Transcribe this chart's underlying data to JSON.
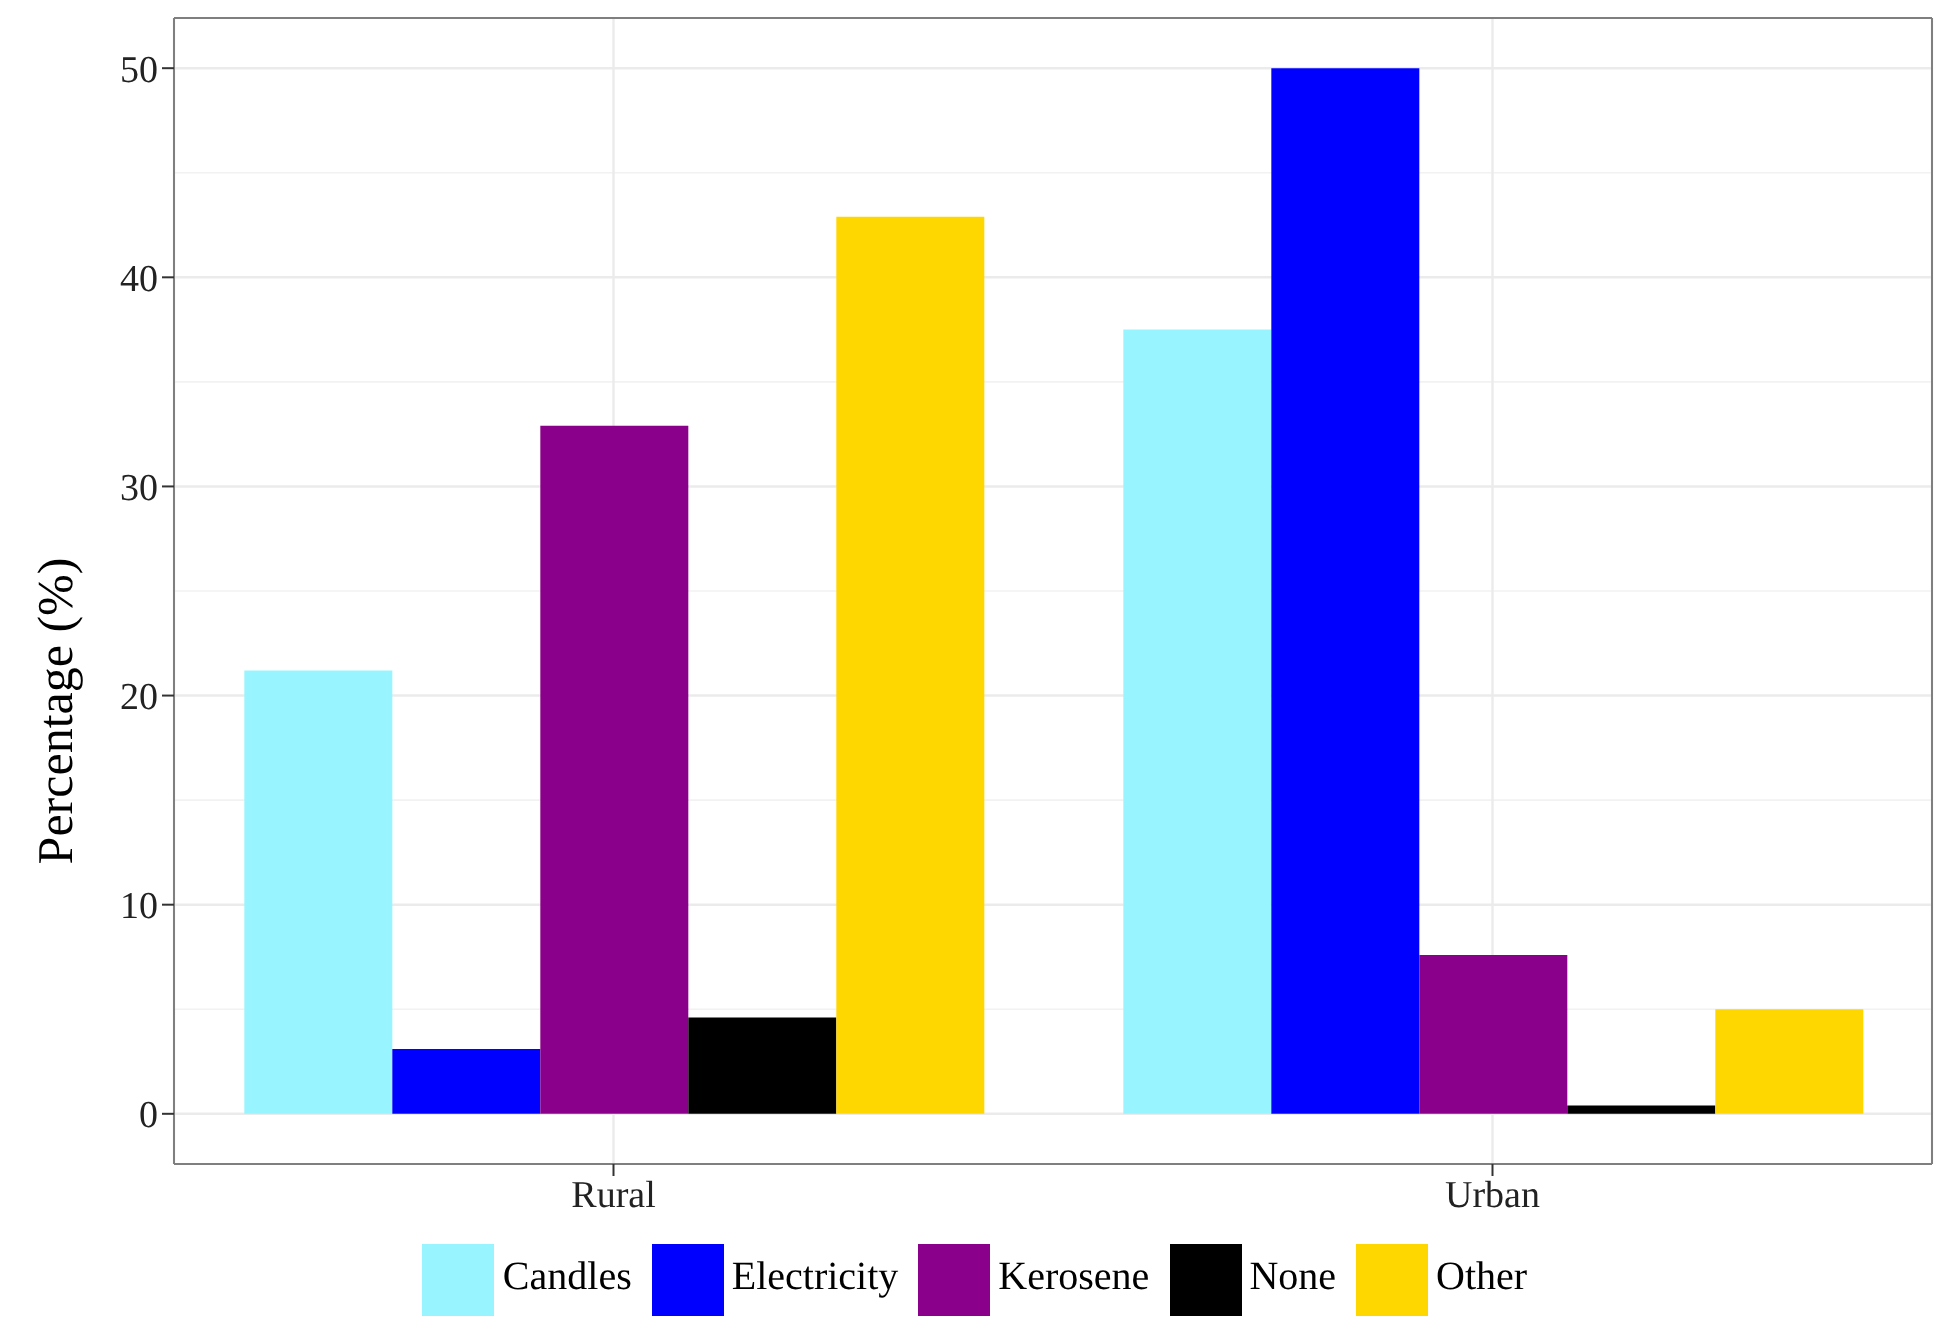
{
  "chart_data": {
    "type": "bar",
    "ylabel": "Percentage (%)",
    "categories": [
      "Rural",
      "Urban"
    ],
    "series": [
      {
        "name": "Candles",
        "color": "#98f5ff",
        "values": [
          21.2,
          37.5
        ]
      },
      {
        "name": "Electricity",
        "color": "#0000ff",
        "values": [
          3.1,
          50.0
        ]
      },
      {
        "name": "Kerosene",
        "color": "#8b008b",
        "values": [
          32.9,
          7.6
        ]
      },
      {
        "name": "None",
        "color": "#000000",
        "values": [
          4.6,
          0.4
        ]
      },
      {
        "name": "Other",
        "color": "#ffd700",
        "values": [
          42.9,
          5.0
        ]
      }
    ],
    "ylim": [
      -2.4,
      52.4
    ],
    "yticks": [
      0,
      10,
      20,
      30,
      40,
      50
    ],
    "grid": true,
    "legend": "bottom"
  }
}
